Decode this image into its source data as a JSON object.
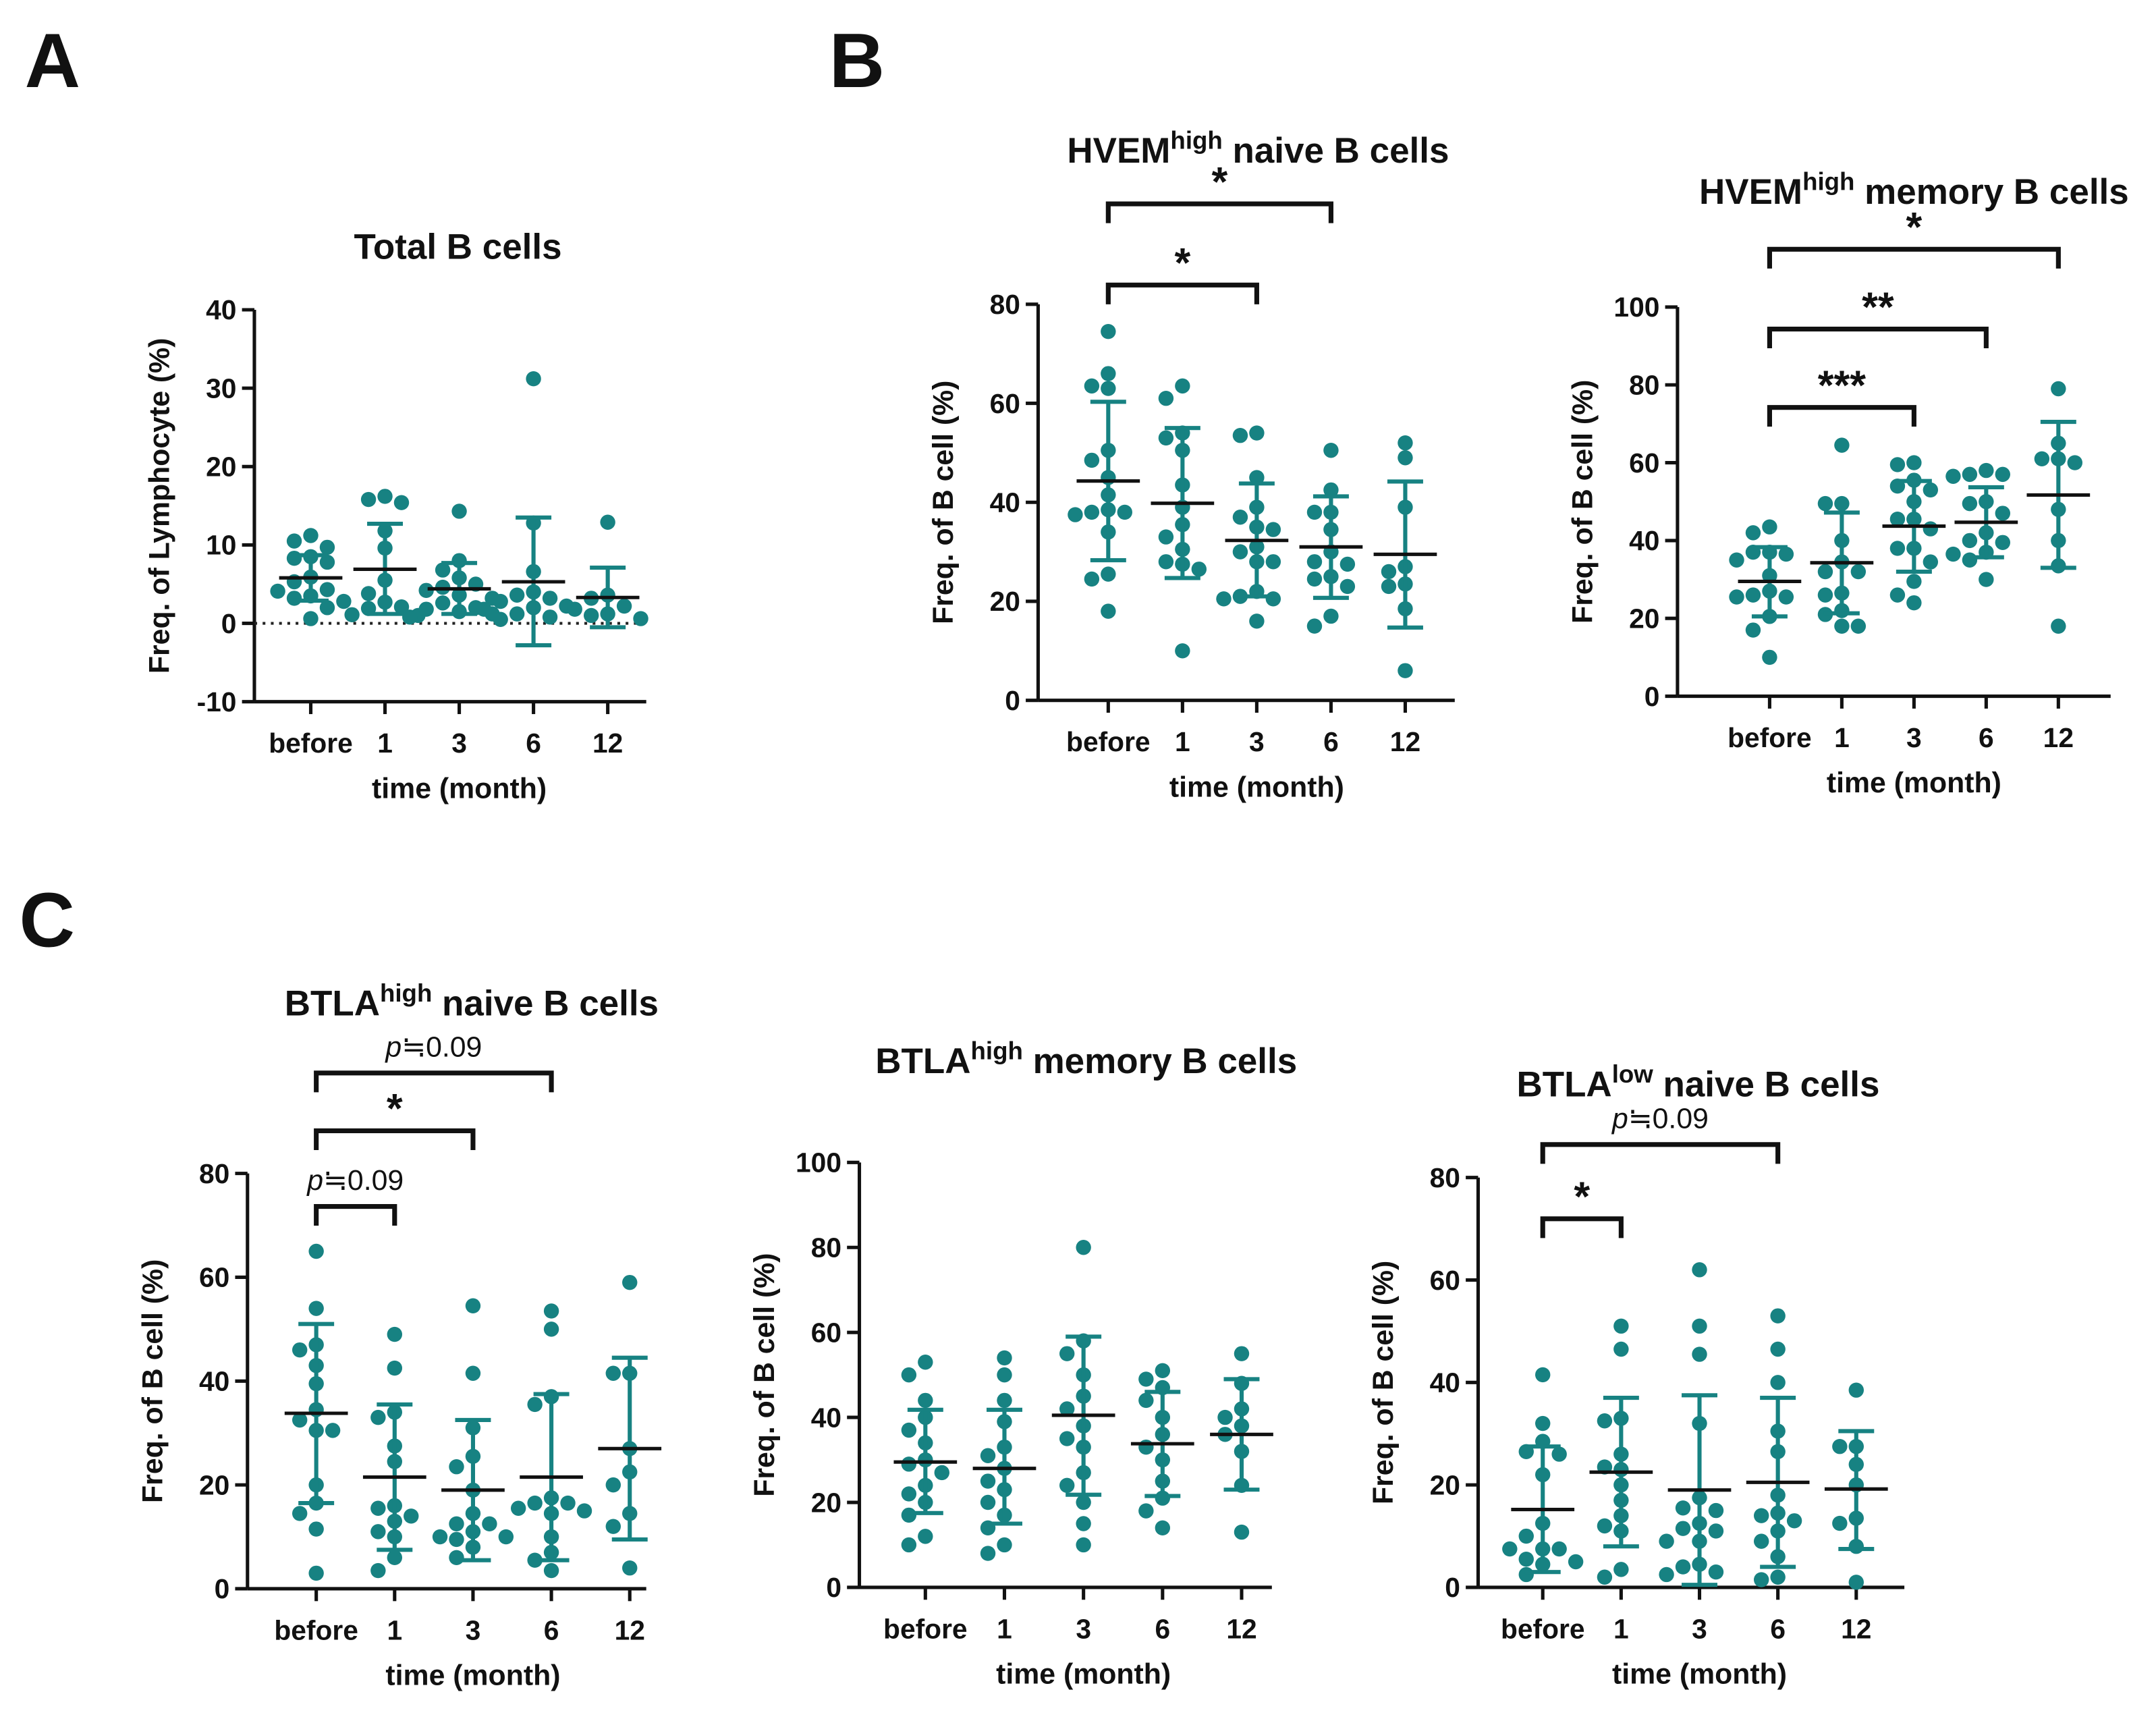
{
  "panel_labels": [
    "A",
    "B",
    "C"
  ],
  "colors": {
    "dot": "#178282",
    "errorbar": "#178282",
    "mean": "#111111",
    "axis": "#111111"
  },
  "chart_data": [
    {
      "type": "scatter",
      "panel": "A",
      "title": {
        "main": "Total B cells",
        "sup": "",
        "rest": ""
      },
      "ylabel": "Freq. of Lymphocyte (%)",
      "xlabel": "time (month)",
      "categories": [
        "before",
        "1",
        "3",
        "6",
        "12"
      ],
      "ylim": [
        -10,
        40
      ],
      "yticks": [
        "-10",
        "0",
        "10",
        "20",
        "30",
        "40"
      ],
      "zero_reference_line": true,
      "groups": [
        {
          "points": [
            11.2,
            10.5,
            9.7,
            8.5,
            8.3,
            7.8,
            5.9,
            5.3,
            4.3,
            4.1,
            3.5,
            3.2,
            2.8,
            2.0,
            0.6
          ],
          "mean": 5.8,
          "sd_range": [
            2.9,
            8.7
          ]
        },
        {
          "points": [
            16.2,
            15.8,
            15.4,
            11.8,
            9.6,
            5.5,
            3.8,
            2.7,
            2.1,
            1.9,
            1.1,
            1.0
          ],
          "mean": 6.9,
          "sd_range": [
            1.2,
            12.7
          ]
        },
        {
          "points": [
            14.3,
            8.0,
            6.8,
            5.8,
            5.0,
            4.6,
            4.2,
            3.6,
            3.2,
            2.6,
            2.0,
            1.8,
            1.5,
            1.2,
            0.8
          ],
          "mean": 4.4,
          "sd_range": [
            1.2,
            7.7
          ]
        },
        {
          "points": [
            31.2,
            12.8,
            6.6,
            4.0,
            3.6,
            3.2,
            2.8,
            2.2,
            2.0,
            1.8,
            1.2,
            0.8,
            0.5
          ],
          "mean": 5.3,
          "sd_range": [
            -2.8,
            13.5
          ]
        },
        {
          "points": [
            12.9,
            3.6,
            3.2,
            2.2,
            1.8,
            1.2,
            1.0,
            0.6
          ],
          "mean": 3.3,
          "sd_range": [
            -0.5,
            7.1
          ]
        }
      ],
      "brackets": []
    },
    {
      "type": "scatter",
      "panel": "B",
      "title": {
        "main": "HVEM",
        "sup": "high",
        "rest": " naive B cells"
      },
      "ylabel": "Freq. of B cell (%)",
      "xlabel": "time (month)",
      "categories": [
        "before",
        "1",
        "3",
        "6",
        "12"
      ],
      "ylim": [
        0,
        80
      ],
      "yticks": [
        "0",
        "20",
        "40",
        "60",
        "80"
      ],
      "zero_reference_line": false,
      "groups": [
        {
          "points": [
            74.5,
            66,
            63.5,
            63,
            50.5,
            48.5,
            45,
            41.5,
            38.5,
            38,
            38,
            37.5,
            34,
            25.5,
            24.5,
            18
          ],
          "mean": 44.3,
          "sd_range": [
            28.3,
            60.3
          ]
        },
        {
          "points": [
            63.5,
            61,
            54,
            53,
            50.5,
            43.5,
            39,
            35.5,
            33,
            30.5,
            28,
            27.5,
            26.5,
            10
          ],
          "mean": 39.8,
          "sd_range": [
            24.7,
            55
          ]
        },
        {
          "points": [
            54,
            53.5,
            45,
            39,
            37,
            35,
            34.5,
            31,
            30,
            28,
            28,
            22,
            21,
            20.5,
            20.5,
            16
          ],
          "mean": 32.3,
          "sd_range": [
            21,
            43.8
          ]
        },
        {
          "points": [
            50.5,
            42.5,
            38,
            38,
            34.5,
            30,
            28,
            27.5,
            25,
            24.5,
            23,
            17,
            15
          ],
          "mean": 31,
          "sd_range": [
            20.7,
            41.2
          ]
        },
        {
          "points": [
            52,
            49,
            39,
            27,
            26,
            23.5,
            23,
            18.5,
            6
          ],
          "mean": 29.5,
          "sd_range": [
            14.7,
            44.2
          ]
        }
      ],
      "brackets": [
        {
          "from": "before",
          "to": "3",
          "label": "*"
        },
        {
          "from": "before",
          "to": "6",
          "label": "*"
        }
      ]
    },
    {
      "type": "scatter",
      "panel": "B",
      "title": {
        "main": "HVEM",
        "sup": "high",
        "rest": " memory B cells"
      },
      "ylabel": "Freq. of B cell (%)",
      "xlabel": "time (month)",
      "categories": [
        "before",
        "1",
        "3",
        "6",
        "12"
      ],
      "ylim": [
        0,
        100
      ],
      "yticks": [
        "0",
        "20",
        "40",
        "60",
        "80",
        "100"
      ],
      "zero_reference_line": false,
      "groups": [
        {
          "points": [
            43.5,
            42,
            37,
            37,
            36.5,
            35,
            31,
            27,
            26,
            25.5,
            25.5,
            20.5,
            17,
            10
          ],
          "mean": 29.5,
          "sd_range": [
            20.5,
            38.3
          ]
        },
        {
          "points": [
            64.5,
            49.5,
            49.5,
            40,
            34.5,
            32,
            32,
            26.5,
            26,
            22,
            21,
            18,
            18
          ],
          "mean": 34.3,
          "sd_range": [
            21.3,
            47.2
          ]
        },
        {
          "points": [
            60,
            59.5,
            55.5,
            54,
            53,
            50,
            45.5,
            45.5,
            43,
            38,
            38,
            34.5,
            29.5,
            26,
            24
          ],
          "mean": 43.7,
          "sd_range": [
            32,
            55.3
          ]
        },
        {
          "points": [
            58,
            57,
            57,
            56.5,
            50,
            49.5,
            47,
            42,
            40,
            39.5,
            37,
            36.5,
            35,
            30
          ],
          "mean": 44.7,
          "sd_range": [
            35.7,
            53.7
          ]
        },
        {
          "points": [
            79,
            65,
            61,
            61,
            60,
            48,
            40,
            33.5,
            18
          ],
          "mean": 51.7,
          "sd_range": [
            33,
            70.5
          ]
        }
      ],
      "brackets": [
        {
          "from": "before",
          "to": "3",
          "label": "***"
        },
        {
          "from": "before",
          "to": "6",
          "label": "**"
        },
        {
          "from": "before",
          "to": "12",
          "label": "*"
        }
      ]
    },
    {
      "type": "scatter",
      "panel": "C",
      "title": {
        "main": "BTLA",
        "sup": "high",
        "rest": " naive B cells"
      },
      "ylabel": "Freq. of B cell (%)",
      "xlabel": "time (month)",
      "categories": [
        "before",
        "1",
        "3",
        "6",
        "12"
      ],
      "ylim": [
        0,
        80
      ],
      "yticks": [
        "0",
        "20",
        "40",
        "60",
        "80"
      ],
      "zero_reference_line": false,
      "groups": [
        {
          "points": [
            65,
            54,
            47,
            46,
            43,
            39.5,
            34.5,
            32.5,
            30.5,
            30.5,
            20,
            16.5,
            14.5,
            11.5,
            3
          ],
          "mean": 33.8,
          "sd_range": [
            16.5,
            51
          ]
        },
        {
          "points": [
            49,
            42.5,
            34,
            33,
            27.5,
            24.5,
            16,
            15.5,
            14,
            13,
            11,
            10,
            6,
            3.5
          ],
          "mean": 21.5,
          "sd_range": [
            7.5,
            35.5
          ]
        },
        {
          "points": [
            54.5,
            41.5,
            31,
            25.5,
            23.5,
            19,
            14.5,
            12.5,
            12.5,
            11,
            10,
            10,
            9.5,
            8,
            6
          ],
          "mean": 19,
          "sd_range": [
            5.5,
            32.5
          ]
        },
        {
          "points": [
            53.5,
            50,
            37,
            35.5,
            17.5,
            16.5,
            16.5,
            15.5,
            15,
            14.5,
            10,
            7,
            5.5,
            3.5
          ],
          "mean": 21.5,
          "sd_range": [
            5.5,
            37.5
          ]
        },
        {
          "points": [
            59,
            41.5,
            41.5,
            27,
            22.5,
            20,
            14.5,
            12,
            4
          ],
          "mean": 27,
          "sd_range": [
            9.5,
            44.5
          ]
        }
      ],
      "brackets": [
        {
          "from": "before",
          "to": "1",
          "label": "≒0.09",
          "p_prefix": "p"
        },
        {
          "from": "before",
          "to": "3",
          "label": "*"
        },
        {
          "from": "before",
          "to": "6",
          "label": "≒0.09",
          "p_prefix": "p"
        }
      ]
    },
    {
      "type": "scatter",
      "panel": "C",
      "title": {
        "main": "BTLA",
        "sup": "high",
        "rest": " memory B cells"
      },
      "ylabel": "Freq. of B cell (%)",
      "xlabel": "time (month)",
      "categories": [
        "before",
        "1",
        "3",
        "6",
        "12"
      ],
      "ylim": [
        0,
        100
      ],
      "yticks": [
        "0",
        "20",
        "40",
        "60",
        "80",
        "100"
      ],
      "zero_reference_line": false,
      "groups": [
        {
          "points": [
            53,
            50,
            44,
            40,
            37,
            34,
            30,
            29,
            27,
            24,
            22,
            20,
            17,
            12,
            10
          ],
          "mean": 29.5,
          "sd_range": [
            17.5,
            41.8
          ]
        },
        {
          "points": [
            54,
            50,
            44,
            39,
            33,
            31,
            28,
            25,
            23,
            20,
            17,
            14,
            10,
            8
          ],
          "mean": 28,
          "sd_range": [
            15,
            41.8
          ]
        },
        {
          "points": [
            80,
            58,
            55,
            50,
            45,
            42,
            38,
            35,
            33,
            27,
            24,
            20,
            15,
            10
          ],
          "mean": 40.5,
          "sd_range": [
            21.8,
            59
          ]
        },
        {
          "points": [
            51,
            49,
            47,
            44,
            40,
            36,
            33,
            30,
            25,
            21,
            18,
            14
          ],
          "mean": 33.8,
          "sd_range": [
            21.5,
            46
          ]
        },
        {
          "points": [
            55,
            48,
            42,
            40,
            38,
            36,
            32,
            24,
            13
          ],
          "mean": 36,
          "sd_range": [
            23,
            49
          ]
        }
      ],
      "brackets": []
    },
    {
      "type": "scatter",
      "panel": "C",
      "title": {
        "main": "BTLA",
        "sup": "low",
        "rest": " naive B cells"
      },
      "ylabel": "Freq. of B cell (%)",
      "xlabel": "time (month)",
      "categories": [
        "before",
        "1",
        "3",
        "6",
        "12"
      ],
      "ylim": [
        0,
        80
      ],
      "yticks": [
        "0",
        "20",
        "40",
        "60",
        "80"
      ],
      "zero_reference_line": false,
      "groups": [
        {
          "points": [
            41.5,
            32,
            28.5,
            26.5,
            26,
            22,
            12.5,
            10,
            7.5,
            7.5,
            7.5,
            5.5,
            5,
            4.5,
            2.5
          ],
          "mean": 15.2,
          "sd_range": [
            3,
            27.5
          ]
        },
        {
          "points": [
            51,
            46.5,
            33,
            32.5,
            26,
            23.5,
            23,
            20,
            17,
            14,
            12,
            11,
            3.5,
            2
          ],
          "mean": 22.5,
          "sd_range": [
            8,
            37
          ]
        },
        {
          "points": [
            62,
            51,
            45.5,
            32,
            17.5,
            15.5,
            15,
            12.5,
            11.5,
            11,
            9,
            9,
            4.5,
            4,
            3,
            2.5
          ],
          "mean": 19,
          "sd_range": [
            0.5,
            37.5
          ]
        },
        {
          "points": [
            53,
            46.5,
            40,
            30.5,
            26.5,
            18,
            14.5,
            14,
            13,
            11,
            9,
            6,
            2,
            1.5
          ],
          "mean": 20.5,
          "sd_range": [
            4,
            37
          ]
        },
        {
          "points": [
            38.5,
            27.5,
            27.5,
            24,
            20,
            13.5,
            12.5,
            8,
            1
          ],
          "mean": 19.2,
          "sd_range": [
            7.5,
            30.5
          ]
        }
      ],
      "brackets": [
        {
          "from": "before",
          "to": "1",
          "label": "*"
        },
        {
          "from": "before",
          "to": "6",
          "label": "≒0.09",
          "p_prefix": "p"
        }
      ]
    }
  ]
}
